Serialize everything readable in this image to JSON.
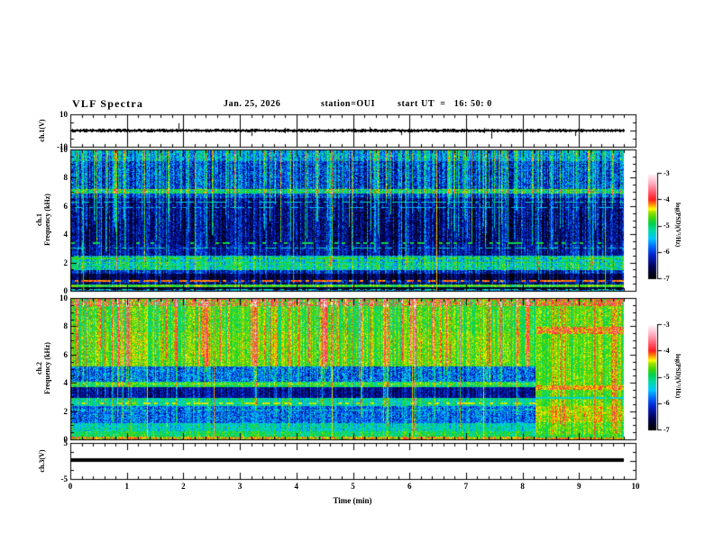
{
  "header": {
    "title": "VLF Spectra",
    "date": "Jan. 25, 2026",
    "station": "station=OUI",
    "start_ut": "start UT  =   16: 50: 0"
  },
  "chart_data": {
    "type": "heatmap",
    "title": "VLF Spectra",
    "x_axis": {
      "label": "Time (min)",
      "range": [
        0,
        10
      ],
      "major_ticks": [
        0,
        1,
        2,
        3,
        4,
        5,
        6,
        7,
        8,
        9,
        10
      ],
      "minor_step": 0.2,
      "data_end": 9.8
    },
    "colormap_stops": [
      [
        0.0,
        "#000000"
      ],
      [
        0.1,
        "#00004b"
      ],
      [
        0.22,
        "#0020c8"
      ],
      [
        0.3,
        "#0064ff"
      ],
      [
        0.38,
        "#00c8ff"
      ],
      [
        0.46,
        "#00dca0"
      ],
      [
        0.52,
        "#00d050"
      ],
      [
        0.58,
        "#46d800"
      ],
      [
        0.63,
        "#a0e000"
      ],
      [
        0.66,
        "#ffff00"
      ],
      [
        0.7,
        "#ff9600"
      ],
      [
        0.75,
        "#ff1e1e"
      ],
      [
        0.82,
        "#ff5a6e"
      ],
      [
        0.9,
        "#ffaabe"
      ],
      [
        0.96,
        "#ffdce6"
      ],
      [
        1.0,
        "#ffffff"
      ]
    ],
    "colorbars": [
      {
        "label": "log(PSD)(V²/Hz)",
        "ticks": [
          -3,
          -4,
          -5,
          -6,
          -7
        ],
        "range": [
          -3,
          -7
        ]
      },
      {
        "label": "log(PSD)(V²/Hz)",
        "ticks": [
          -3,
          -4,
          -5,
          -6,
          -7
        ],
        "range": [
          -3,
          -7
        ]
      }
    ],
    "panels": [
      {
        "id": "ch1_waveform",
        "type": "line",
        "ylabel": "ch.1(V)",
        "ylim": [
          -10,
          10
        ],
        "yticks": [
          10,
          -10
        ],
        "baseline_v": 0,
        "noise_amp_v": 1.0,
        "spikes": [
          {
            "t": 1.92,
            "v": 4.2
          },
          {
            "t": 3.2,
            "v": -3.2
          },
          {
            "t": 5.3,
            "v": 2.4
          },
          {
            "t": 5.85,
            "v": -2.8
          },
          {
            "t": 7.45,
            "v": -5.2
          },
          {
            "t": 8.93,
            "v": -3.6
          }
        ]
      },
      {
        "id": "ch1_spectrogram",
        "type": "heatmap",
        "ylabel_lines": [
          "ch.1",
          "Frequency (kHz)"
        ],
        "ylim": [
          0,
          10
        ],
        "yticks": [
          0,
          2,
          4,
          6,
          8,
          10
        ],
        "zlim": [
          -7,
          -3
        ],
        "segments": [
          {
            "t0": 0,
            "t1": 9.8,
            "col_noise": 0.5,
            "bands": [
              [
                0,
                0.06,
                -5.6,
                0.5
              ],
              [
                0.06,
                0.28,
                -6.8,
                0.25
              ],
              [
                0.28,
                0.42,
                -4.85,
                0.35
              ],
              [
                0.42,
                0.6,
                -6.45,
                0.55
              ],
              [
                0.6,
                0.8,
                -6.2,
                0.5
              ],
              [
                0.8,
                1.2,
                -6.6,
                0.3
              ],
              [
                1.2,
                1.5,
                -6.1,
                0.45
              ],
              [
                1.5,
                2.05,
                -5.15,
                0.45
              ],
              [
                2.05,
                2.5,
                -5.3,
                0.45
              ],
              [
                2.5,
                3.3,
                -6.25,
                0.4
              ],
              [
                3.3,
                6.6,
                -6.4,
                0.45
              ],
              [
                6.6,
                6.9,
                -6.0,
                0.5
              ],
              [
                6.9,
                7.25,
                -5.15,
                0.5
              ],
              [
                7.25,
                9.2,
                -5.95,
                0.55
              ],
              [
                9.2,
                10,
                -5.55,
                0.5
              ]
            ],
            "hlines": [
              {
                "f": 7.2,
                "hw": 0.04,
                "v": -4.75,
                "duty": 0.85
              },
              {
                "f": 7.0,
                "hw": 0.04,
                "v": -4.9,
                "duty": 0.7
              },
              {
                "f": 6.3,
                "hw": 0.03,
                "v": -5.3,
                "duty": 0.6
              },
              {
                "f": 5.9,
                "hw": 0.03,
                "v": -5.5,
                "duty": 0.5
              },
              {
                "f": 3.4,
                "hw": 0.035,
                "v": -4.9,
                "duty": 0.35
              },
              {
                "f": 3.05,
                "hw": 0.03,
                "v": -5.3,
                "duty": 0.5
              },
              {
                "f": 2.3,
                "hw": 0.045,
                "v": -4.75,
                "duty": 0.8
              },
              {
                "f": 2.0,
                "hw": 0.04,
                "v": -4.8,
                "duty": 0.7
              },
              {
                "f": 1.75,
                "hw": 0.035,
                "v": -4.9,
                "duty": 0.5
              },
              {
                "f": 0.7,
                "hw": 0.09,
                "v": -4.15,
                "duty": 0.55
              },
              {
                "f": 0.35,
                "hw": 0.05,
                "v": -4.6,
                "duty": 0.85
              },
              {
                "f": 0.12,
                "hw": 0.03,
                "v": -5.2,
                "duty": 0.5
              }
            ],
            "speckles": [],
            "streaks": {
              "count": 170,
              "boost": [
                0.25,
                1.35
              ],
              "fbot": [
                2.55,
                6.5
              ],
              "deep_p": 0.12
            },
            "hot_streaks": [
              {
                "t": 6.48,
                "vmin": -4.25
              },
              {
                "t": 9.45,
                "vmin": -4.6
              },
              {
                "t": 0.22,
                "vmin": -4.7
              }
            ]
          }
        ]
      },
      {
        "id": "ch2_spectrogram",
        "type": "heatmap",
        "ylabel_lines": [
          "ch.2",
          "Frequency (kHz)"
        ],
        "ylim": [
          0,
          10
        ],
        "yticks": [
          0,
          2,
          4,
          6,
          8,
          10
        ],
        "zlim": [
          -7,
          -3
        ],
        "segments": [
          {
            "t0": 0,
            "t1": 8.23,
            "col_noise": 0.3,
            "bands": [
              [
                0,
                0.18,
                -4.5,
                0.35
              ],
              [
                0.18,
                0.55,
                -4.95,
                0.3
              ],
              [
                0.55,
                1.15,
                -5.25,
                0.4
              ],
              [
                1.15,
                2.35,
                -5.8,
                0.5
              ],
              [
                2.35,
                2.95,
                -5.15,
                0.4
              ],
              [
                2.95,
                3.75,
                -6.35,
                0.35
              ],
              [
                3.75,
                4.1,
                -4.95,
                0.35
              ],
              [
                4.1,
                5.2,
                -5.8,
                0.55
              ],
              [
                5.2,
                7.6,
                -4.68,
                0.3
              ],
              [
                7.6,
                9.5,
                -4.78,
                0.32
              ],
              [
                9.5,
                10,
                -4.7,
                0.4
              ]
            ],
            "hlines": [
              {
                "f": 3.95,
                "hw": 0.05,
                "v": -4.5,
                "duty": 0.75
              },
              {
                "f": 2.55,
                "hw": 0.05,
                "v": -4.4,
                "duty": 0.4
              },
              {
                "f": 2.1,
                "hw": 0.035,
                "v": -5.2,
                "duty": 0.5
              },
              {
                "f": 4.55,
                "hw": 0.03,
                "v": -5.3,
                "duty": 0.4
              },
              {
                "f": 0.1,
                "hw": 0.05,
                "v": -4.25,
                "duty": 0.5
              }
            ],
            "speckles": [
              {
                "f0": 9.5,
                "f1": 10,
                "p": 0.3,
                "v": -3.8
              },
              {
                "f0": 0,
                "f1": 0.18,
                "p": 0.18,
                "v": -3.85
              }
            ],
            "streaks": {
              "count": 140,
              "boost": [
                0.2,
                1.05
              ],
              "fbot": [
                3.7,
                6.5
              ],
              "deep_p": 0.3,
              "top_extra": 0.55
            },
            "hot_streaks": [
              {
                "t": 1.35,
                "vmin": -4.4
              },
              {
                "t": 2.54,
                "vmin": -4.2
              },
              {
                "t": 4.62,
                "vmin": -4.35
              },
              {
                "t": 6.05,
                "vmin": -4.3
              },
              {
                "t": 7.3,
                "vmin": -4.45
              }
            ]
          },
          {
            "t0": 8.23,
            "t1": 9.8,
            "col_noise": 0.25,
            "bands": [
              [
                0,
                0.1,
                -4.4,
                0.3
              ],
              [
                0.1,
                0.4,
                -4.85,
                0.3
              ],
              [
                0.4,
                1.25,
                -4.7,
                0.3
              ],
              [
                1.25,
                2.4,
                -4.5,
                0.3
              ],
              [
                2.4,
                2.9,
                -4.7,
                0.3
              ],
              [
                2.9,
                3.5,
                -4.75,
                0.3
              ],
              [
                3.5,
                3.85,
                -4.3,
                0.35
              ],
              [
                3.85,
                7.5,
                -4.7,
                0.28
              ],
              [
                7.5,
                8.0,
                -4.3,
                0.4
              ],
              [
                8.0,
                9.5,
                -4.7,
                0.35
              ],
              [
                9.5,
                10,
                -4.55,
                0.45
              ]
            ],
            "hlines": [
              {
                "f": 2.95,
                "hw": 0.04,
                "v": -5.35,
                "duty": 0.8,
                "mode": "min"
              },
              {
                "f": 1.9,
                "hw": 0.05,
                "v": -4.35,
                "duty": 0.5
              },
              {
                "f": 5.9,
                "hw": 0.03,
                "v": -4.45,
                "duty": 0.35
              }
            ],
            "speckles": [
              {
                "f0": 9.5,
                "f1": 10,
                "p": 0.45,
                "v": -3.8
              },
              {
                "f0": 7.5,
                "f1": 8,
                "p": 0.2,
                "v": -3.8
              },
              {
                "f0": 0,
                "f1": 0.1,
                "p": 0.3,
                "v": -3.85
              }
            ],
            "streaks": {
              "count": 14,
              "boost": [
                0.3,
                0.6
              ],
              "fbot": [
                0.2,
                1.0
              ],
              "deep_p": 0
            },
            "hot_streaks": [
              {
                "t": 9.27,
                "vmin": -4.1
              },
              {
                "t": 9.6,
                "vmin": -4.2
              }
            ]
          }
        ]
      },
      {
        "id": "ch3_waveform",
        "type": "line",
        "ylabel": "ch.3(V)",
        "ylim": [
          -5,
          5
        ],
        "yticks": [
          5,
          -5
        ],
        "value_v": 0,
        "trace_thickness_px": 4,
        "t_end": 9.8
      }
    ]
  }
}
